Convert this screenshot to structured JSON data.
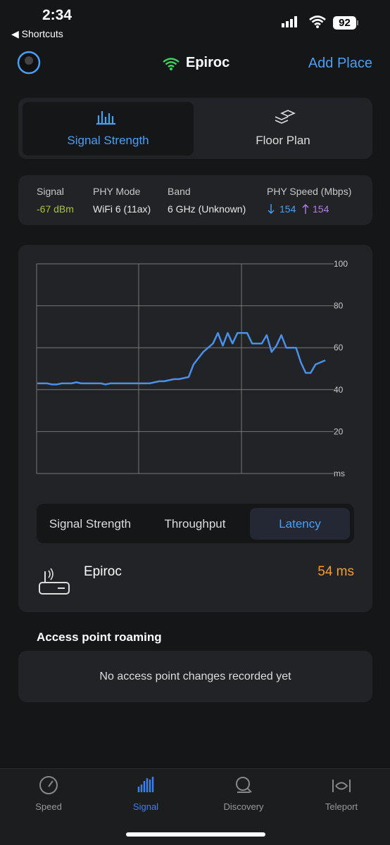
{
  "status_bar": {
    "time": "2:34",
    "back": "Shortcuts",
    "battery": "92"
  },
  "header": {
    "title": "Epiroc",
    "action": "Add Place"
  },
  "tabs": [
    "Signal Strength",
    "Floor Plan"
  ],
  "info": [
    {
      "label": "Signal",
      "value": "-67 dBm"
    },
    {
      "label": "PHY Mode",
      "value": "WiFi 6 (11ax)"
    },
    {
      "label": "Band",
      "value": "6 GHz (Unknown)"
    },
    {
      "label": "PHY Speed (Mbps)",
      "down": "154",
      "up": "154"
    }
  ],
  "chart_data": {
    "type": "line",
    "color": "#4a90e8",
    "ylim": [
      0,
      100
    ],
    "yticks": [
      {
        "value": 0,
        "label": "ms"
      },
      20,
      40,
      60,
      80,
      100
    ],
    "grid": true,
    "values": [
      43,
      43,
      43,
      42.5,
      42.5,
      43,
      43,
      43,
      43.5,
      43,
      43,
      43,
      43,
      43,
      42.5,
      43,
      43,
      43,
      43,
      43,
      43,
      43,
      43,
      43,
      43.5,
      44,
      44,
      44.5,
      45,
      45,
      45.5,
      46,
      52,
      55,
      58,
      60,
      62,
      67,
      61,
      67,
      62,
      67,
      67,
      67,
      62,
      62,
      62,
      66,
      58,
      61,
      66,
      60,
      60,
      60,
      53,
      48,
      48,
      52,
      53,
      54
    ]
  },
  "segments": [
    "Signal Strength",
    "Throughput",
    "Latency"
  ],
  "device": {
    "name": "Epiroc",
    "value": "54 ms"
  },
  "roaming": {
    "title": "Access point roaming",
    "message": "No access point changes recorded yet"
  },
  "nav": [
    "Speed",
    "Signal",
    "Discovery",
    "Teleport"
  ]
}
